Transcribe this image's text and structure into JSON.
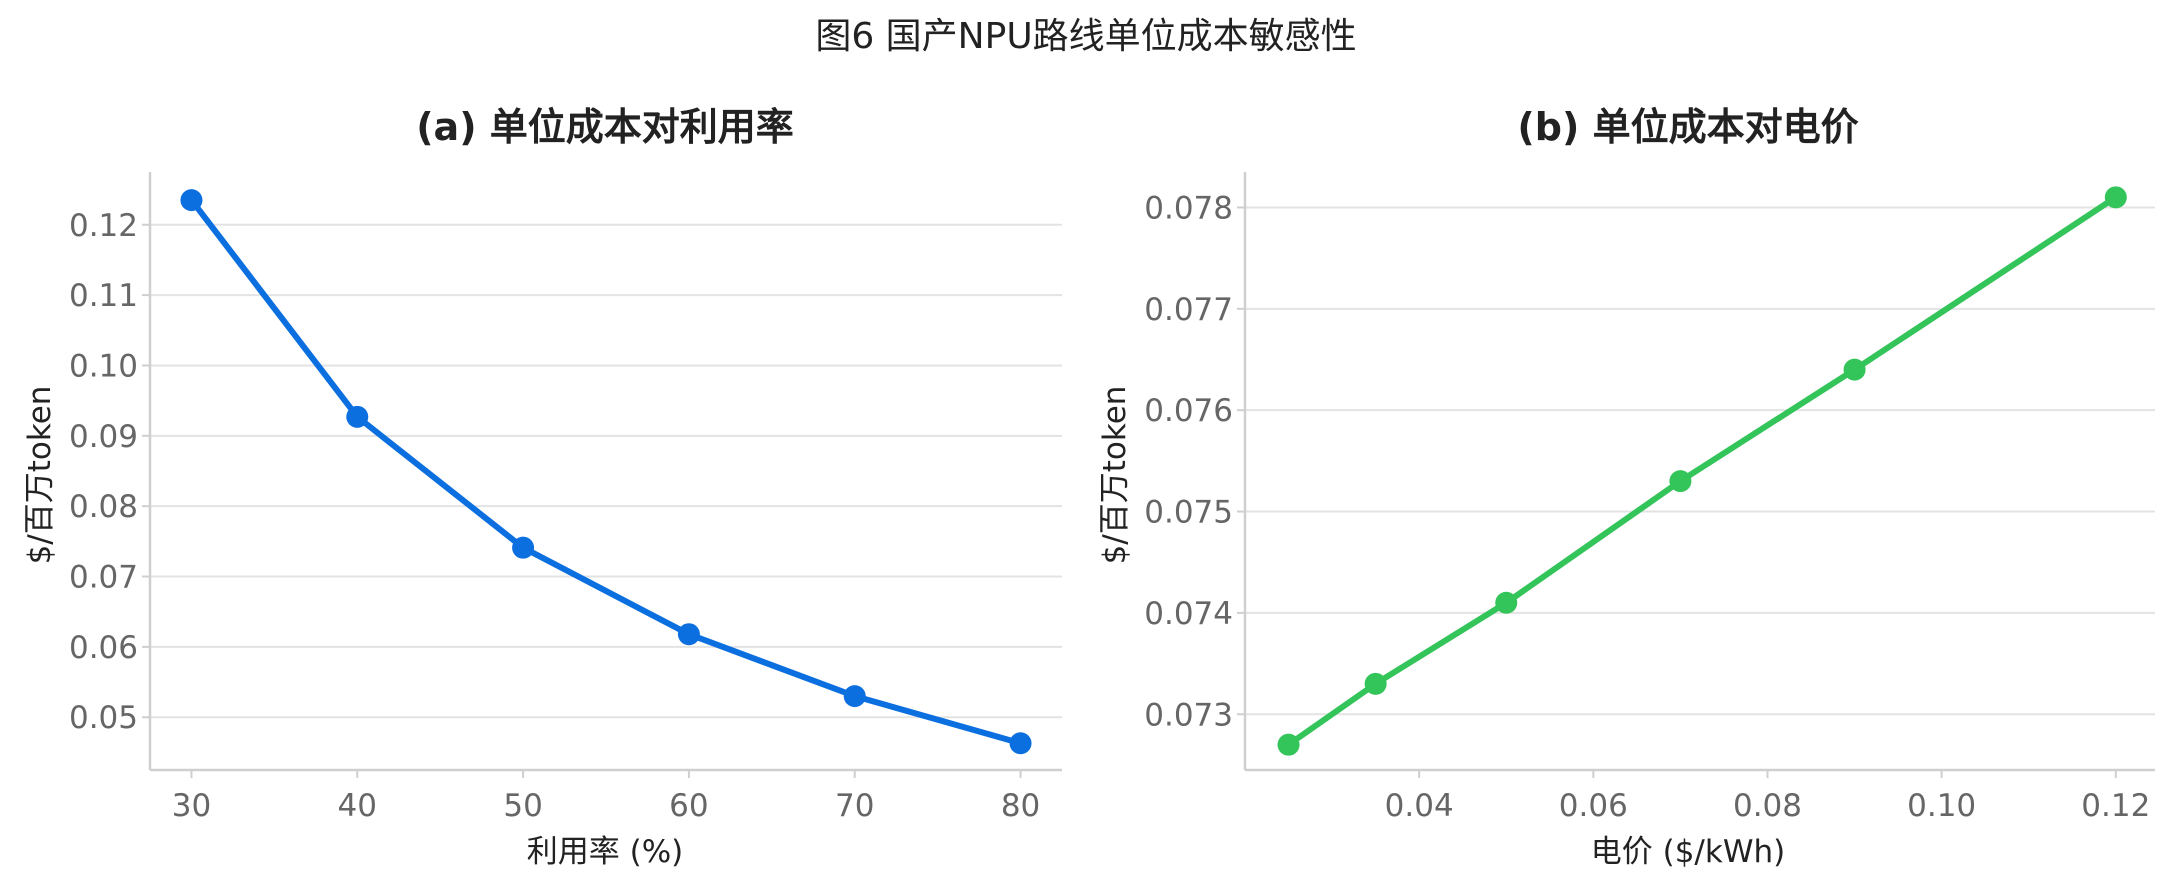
{
  "figure": {
    "title": "图6 国产NPU路线单位成本敏感性"
  },
  "chart_data": [
    {
      "type": "line",
      "title": "(a) 单位成本对利用率",
      "xlabel": "利用率 (%)",
      "ylabel": "$/百万token",
      "color": "#0b6fdf",
      "x": [
        30,
        40,
        50,
        60,
        70,
        80
      ],
      "series": [
        {
          "values": [
            0.1235,
            0.0927,
            0.0741,
            0.0618,
            0.053,
            0.0463
          ]
        }
      ],
      "xlim": [
        27.5,
        82.5
      ],
      "ylim": [
        0.0425,
        0.1275
      ],
      "xticks": [
        30,
        40,
        50,
        60,
        70,
        80
      ],
      "xtick_labels": [
        "30",
        "40",
        "50",
        "60",
        "70",
        "80"
      ],
      "yticks": [
        0.05,
        0.06,
        0.07,
        0.08,
        0.09,
        0.1,
        0.11,
        0.12
      ],
      "ytick_labels": [
        "0.05",
        "0.06",
        "0.07",
        "0.08",
        "0.09",
        "0.10",
        "0.11",
        "0.12"
      ],
      "grid": "horizontal"
    },
    {
      "type": "line",
      "title": "(b) 单位成本对电价",
      "xlabel": "电价 ($/kWh)",
      "ylabel": "$/百万token",
      "color": "#33c45a",
      "x": [
        0.025,
        0.035,
        0.05,
        0.07,
        0.09,
        0.12
      ],
      "series": [
        {
          "values": [
            0.0727,
            0.0733,
            0.0741,
            0.0753,
            0.0764,
            0.0781
          ]
        }
      ],
      "xlim": [
        0.02,
        0.1245
      ],
      "ylim": [
        0.07245,
        0.07835
      ],
      "xticks": [
        0.04,
        0.06,
        0.08,
        0.1,
        0.12
      ],
      "xtick_labels": [
        "0.04",
        "0.06",
        "0.08",
        "0.10",
        "0.12"
      ],
      "yticks": [
        0.073,
        0.074,
        0.075,
        0.076,
        0.077,
        0.078
      ],
      "ytick_labels": [
        "0.073",
        "0.074",
        "0.075",
        "0.076",
        "0.077",
        "0.078"
      ],
      "grid": "horizontal"
    }
  ]
}
